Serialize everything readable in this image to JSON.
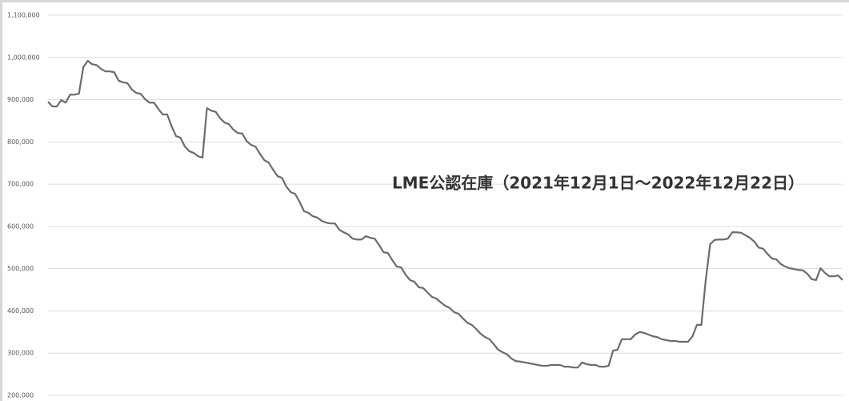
{
  "chart_data": {
    "type": "line",
    "title": "LME公認在庫（2021年12月1日〜2022年12月22日）",
    "series": [
      {
        "color": "#6b6b6b",
        "values": [
          895000,
          884000,
          884000,
          899000,
          893000,
          912000,
          912000,
          914000,
          977000,
          992000,
          984000,
          982000,
          973000,
          967000,
          967000,
          965000,
          945000,
          941000,
          939000,
          924000,
          916000,
          914000,
          901000,
          893000,
          893000,
          878000,
          865000,
          865000,
          837000,
          814000,
          810000,
          789000,
          778000,
          774000,
          766000,
          763000,
          880000,
          874000,
          871000,
          856000,
          846000,
          842000,
          829000,
          821000,
          820000,
          802000,
          793000,
          789000,
          772000,
          757000,
          751000,
          734000,
          719000,
          715000,
          694000,
          681000,
          677000,
          658000,
          636000,
          632000,
          624000,
          621000,
          613000,
          609000,
          607000,
          607000,
          592000,
          586000,
          581000,
          571000,
          569000,
          569000,
          577000,
          573000,
          571000,
          556000,
          539000,
          537000,
          520000,
          505000,
          503000,
          486000,
          473000,
          469000,
          456000,
          454000,
          443000,
          433000,
          429000,
          420000,
          412000,
          407000,
          397000,
          393000,
          382000,
          372000,
          367000,
          357000,
          346000,
          338000,
          333000,
          321000,
          308000,
          302000,
          297000,
          287000,
          281000,
          280000,
          278000,
          276000,
          274000,
          272000,
          270000,
          270000,
          272000,
          272000,
          272000,
          268000,
          268000,
          266000,
          266000,
          278000,
          274000,
          272000,
          272000,
          268000,
          268000,
          270000,
          306000,
          308000,
          333000,
          333000,
          333000,
          344000,
          350000,
          348000,
          344000,
          340000,
          338000,
          333000,
          331000,
          329000,
          329000,
          327000,
          327000,
          327000,
          340000,
          367000,
          367000,
          473000,
          558000,
          568000,
          569000,
          569000,
          571000,
          586000,
          586000,
          585000,
          579000,
          573000,
          564000,
          550000,
          547000,
          535000,
          524000,
          522000,
          511000,
          505000,
          501000,
          499000,
          497000,
          496000,
          488000,
          475000,
          473000,
          501000,
          490000,
          482000,
          482000,
          484000,
          473000
        ]
      }
    ],
    "ylim": [
      200000,
      1100000
    ],
    "yticks": [
      {
        "value": 200000,
        "label": "200,000"
      },
      {
        "value": 300000,
        "label": "300,000"
      },
      {
        "value": 400000,
        "label": "400,000"
      },
      {
        "value": 500000,
        "label": "500,000"
      },
      {
        "value": 600000,
        "label": "600,000"
      },
      {
        "value": 700000,
        "label": "700,000"
      },
      {
        "value": 800000,
        "label": "800,000"
      },
      {
        "value": 900000,
        "label": "900,000"
      },
      {
        "value": 1000000,
        "label": "1,000,000"
      },
      {
        "value": 1100000,
        "label": "1,100,000"
      }
    ],
    "grid": true
  }
}
